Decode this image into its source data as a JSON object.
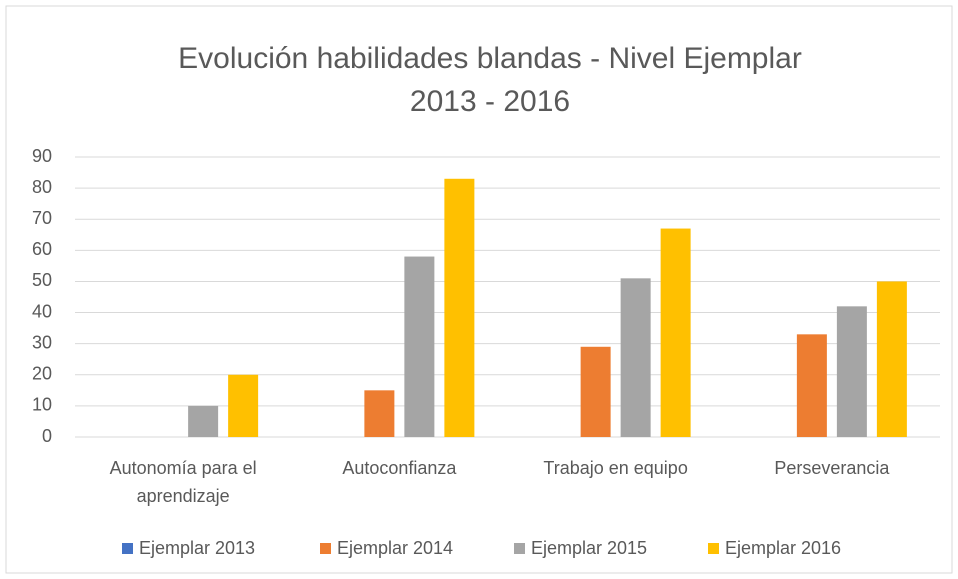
{
  "chart_data": {
    "type": "bar",
    "title": "Evolución habilidades blandas - Nivel Ejemplar",
    "subtitle": "2013 - 2016",
    "categories": [
      "Autonomía para el aprendizaje",
      "Autoconfianza",
      "Trabajo en equipo",
      "Perseverancia"
    ],
    "series": [
      {
        "name": "Ejemplar 2013",
        "color": "#4472c4",
        "values": [
          0,
          0,
          0,
          0
        ]
      },
      {
        "name": "Ejemplar 2014",
        "color": "#ed7d31",
        "values": [
          0,
          15,
          29,
          33
        ]
      },
      {
        "name": "Ejemplar 2015",
        "color": "#a5a5a5",
        "values": [
          10,
          58,
          51,
          42
        ]
      },
      {
        "name": "Ejemplar 2016",
        "color": "#ffc000",
        "values": [
          20,
          83,
          67,
          50
        ]
      }
    ],
    "ylim": [
      0,
      90
    ],
    "yticks": [
      0,
      10,
      20,
      30,
      40,
      50,
      60,
      70,
      80,
      90
    ],
    "grid": true,
    "legend": "bottom"
  }
}
